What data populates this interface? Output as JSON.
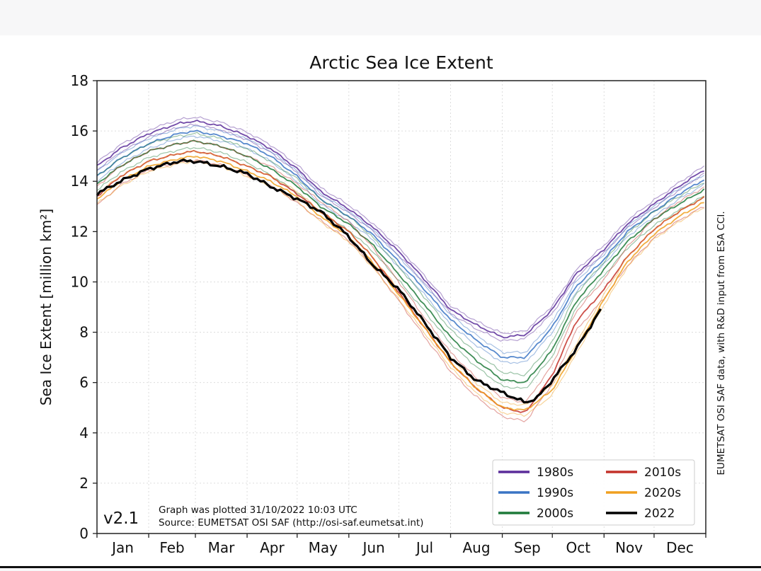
{
  "chart_data": {
    "type": "line",
    "title": "Arctic Sea Ice Extent",
    "ylabel": "Sea Ice Extent [million km²]",
    "ylim": [
      0,
      18
    ],
    "yticks": [
      0,
      2,
      4,
      6,
      8,
      10,
      12,
      14,
      16,
      18
    ],
    "xlim": [
      1,
      366
    ],
    "months": [
      "Jan",
      "Feb",
      "Mar",
      "Apr",
      "May",
      "Jun",
      "Jul",
      "Aug",
      "Sep",
      "Oct",
      "Nov",
      "Dec"
    ],
    "grid": true,
    "legend_placement": "lower-right",
    "version": "v2.1",
    "plotted_note": "Graph was plotted 31/10/2022 10:03 UTC",
    "source_note": "Source: EUMETSAT OSI SAF (http://osi-saf.eumetsat.int)",
    "side_note": "EUMETSAT OSI SAF data, with R&D input from ESA CCI.",
    "legend": [
      {
        "label": "1980s",
        "color": "#5b2d9a"
      },
      {
        "label": "1990s",
        "color": "#3a74c4"
      },
      {
        "label": "2000s",
        "color": "#1e7a3a"
      },
      {
        "label": "2010s",
        "color": "#c4322a"
      },
      {
        "label": "2020s",
        "color": "#f0a020"
      },
      {
        "label": "2022",
        "color": "#000000"
      }
    ],
    "series": [
      {
        "name": "1980s",
        "color": "#5b2d9a",
        "points": [
          [
            1,
            14.6
          ],
          [
            15,
            15.3
          ],
          [
            32,
            15.9
          ],
          [
            50,
            16.3
          ],
          [
            60,
            16.4
          ],
          [
            75,
            16.2
          ],
          [
            91,
            15.8
          ],
          [
            105,
            15.3
          ],
          [
            121,
            14.5
          ],
          [
            135,
            13.6
          ],
          [
            152,
            12.9
          ],
          [
            166,
            12.2
          ],
          [
            182,
            11.2
          ],
          [
            196,
            10.2
          ],
          [
            213,
            8.9
          ],
          [
            228,
            8.3
          ],
          [
            244,
            7.8
          ],
          [
            258,
            7.9
          ],
          [
            274,
            8.9
          ],
          [
            288,
            10.3
          ],
          [
            305,
            11.3
          ],
          [
            319,
            12.3
          ],
          [
            335,
            13.1
          ],
          [
            350,
            13.8
          ],
          [
            366,
            14.5
          ]
        ],
        "variants": [
          -0.15,
          0.15
        ]
      },
      {
        "name": "1990s",
        "color": "#3a74c4",
        "points": [
          [
            1,
            14.2
          ],
          [
            15,
            14.9
          ],
          [
            32,
            15.5
          ],
          [
            50,
            15.9
          ],
          [
            60,
            16.0
          ],
          [
            75,
            15.8
          ],
          [
            91,
            15.5
          ],
          [
            105,
            15.0
          ],
          [
            121,
            14.2
          ],
          [
            135,
            13.3
          ],
          [
            152,
            12.6
          ],
          [
            166,
            11.9
          ],
          [
            182,
            10.8
          ],
          [
            196,
            9.8
          ],
          [
            213,
            8.5
          ],
          [
            228,
            7.7
          ],
          [
            244,
            7.0
          ],
          [
            258,
            7.0
          ],
          [
            274,
            8.2
          ],
          [
            288,
            9.8
          ],
          [
            305,
            10.9
          ],
          [
            319,
            12.0
          ],
          [
            335,
            12.8
          ],
          [
            350,
            13.5
          ],
          [
            366,
            14.1
          ]
        ],
        "variants": [
          -0.2,
          0.2
        ]
      },
      {
        "name": "2000s",
        "color": "#1e7a3a",
        "points": [
          [
            1,
            13.9
          ],
          [
            15,
            14.6
          ],
          [
            32,
            15.2
          ],
          [
            50,
            15.5
          ],
          [
            60,
            15.6
          ],
          [
            75,
            15.4
          ],
          [
            91,
            15.0
          ],
          [
            105,
            14.5
          ],
          [
            121,
            13.8
          ],
          [
            135,
            13.0
          ],
          [
            152,
            12.3
          ],
          [
            166,
            11.5
          ],
          [
            182,
            10.3
          ],
          [
            196,
            9.2
          ],
          [
            213,
            7.8
          ],
          [
            228,
            6.9
          ],
          [
            244,
            6.1
          ],
          [
            258,
            6.0
          ],
          [
            274,
            7.3
          ],
          [
            288,
            9.2
          ],
          [
            305,
            10.5
          ],
          [
            319,
            11.6
          ],
          [
            335,
            12.5
          ],
          [
            350,
            13.1
          ],
          [
            366,
            13.7
          ]
        ],
        "variants": [
          -0.25,
          0.3
        ]
      },
      {
        "name": "2010s",
        "color": "#c4322a",
        "points": [
          [
            1,
            13.4
          ],
          [
            15,
            14.2
          ],
          [
            32,
            14.8
          ],
          [
            50,
            15.1
          ],
          [
            60,
            15.2
          ],
          [
            75,
            15.0
          ],
          [
            91,
            14.6
          ],
          [
            105,
            14.2
          ],
          [
            121,
            13.5
          ],
          [
            135,
            12.8
          ],
          [
            152,
            12.0
          ],
          [
            166,
            11.0
          ],
          [
            182,
            9.6
          ],
          [
            196,
            8.3
          ],
          [
            213,
            6.8
          ],
          [
            228,
            5.8
          ],
          [
            244,
            5.0
          ],
          [
            258,
            4.8
          ],
          [
            274,
            6.3
          ],
          [
            288,
            8.4
          ],
          [
            305,
            9.7
          ],
          [
            319,
            11.0
          ],
          [
            335,
            12.1
          ],
          [
            350,
            12.8
          ],
          [
            366,
            13.4
          ]
        ],
        "variants": [
          -0.35,
          0.4
        ]
      },
      {
        "name": "2020s",
        "color": "#f0a020",
        "points": [
          [
            1,
            13.3
          ],
          [
            15,
            14.0
          ],
          [
            32,
            14.6
          ],
          [
            50,
            14.9
          ],
          [
            60,
            15.0
          ],
          [
            75,
            14.8
          ],
          [
            91,
            14.4
          ],
          [
            105,
            14.0
          ],
          [
            121,
            13.4
          ],
          [
            135,
            12.6
          ],
          [
            152,
            11.8
          ],
          [
            166,
            10.8
          ],
          [
            182,
            9.5
          ],
          [
            196,
            8.3
          ],
          [
            213,
            6.8
          ],
          [
            228,
            5.8
          ],
          [
            244,
            5.0
          ],
          [
            258,
            4.9
          ],
          [
            274,
            5.7
          ],
          [
            288,
            7.3
          ],
          [
            305,
            9.3
          ],
          [
            319,
            10.8
          ],
          [
            335,
            11.9
          ],
          [
            350,
            12.6
          ],
          [
            366,
            13.2
          ]
        ],
        "variants": [
          -0.2,
          0.2
        ]
      },
      {
        "name": "2022",
        "color": "#000000",
        "points": [
          [
            1,
            13.5
          ],
          [
            15,
            14.0
          ],
          [
            32,
            14.5
          ],
          [
            50,
            14.8
          ],
          [
            60,
            14.8
          ],
          [
            75,
            14.6
          ],
          [
            91,
            14.3
          ],
          [
            105,
            13.8
          ],
          [
            121,
            13.3
          ],
          [
            135,
            12.8
          ],
          [
            152,
            11.8
          ],
          [
            166,
            10.7
          ],
          [
            182,
            9.7
          ],
          [
            196,
            8.5
          ],
          [
            213,
            7.0
          ],
          [
            228,
            6.1
          ],
          [
            244,
            5.6
          ],
          [
            258,
            5.2
          ],
          [
            265,
            5.4
          ],
          [
            274,
            6.1
          ],
          [
            288,
            7.3
          ],
          [
            303,
            8.9
          ]
        ],
        "variants": []
      }
    ]
  }
}
